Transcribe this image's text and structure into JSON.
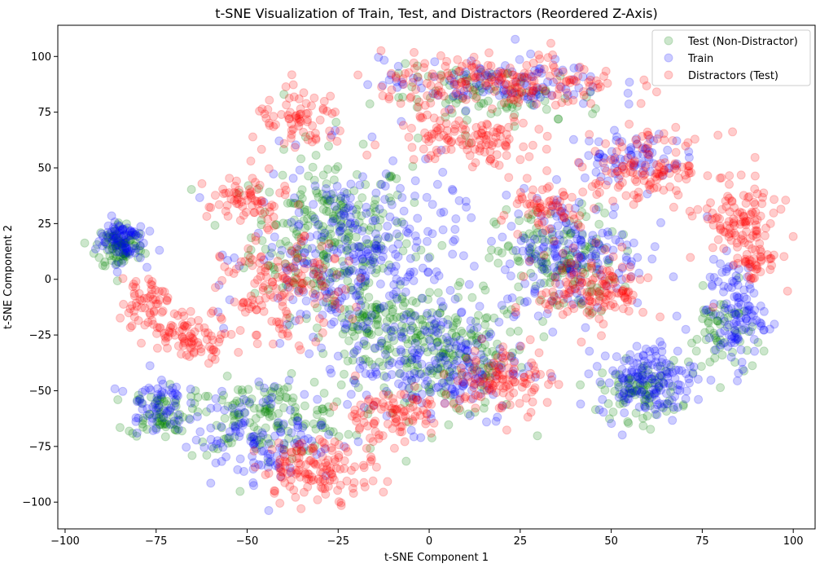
{
  "chart_data": {
    "type": "scatter",
    "title": "t-SNE Visualization of Train, Test, and Distractors (Reordered Z-Axis)",
    "xlabel": "t-SNE Component 1",
    "ylabel": "t-SNE Component 2",
    "xlim": [
      -102,
      106
    ],
    "ylim": [
      -112,
      114
    ],
    "xticks": [
      -100,
      -75,
      -50,
      -25,
      0,
      25,
      50,
      75,
      100
    ],
    "yticks": [
      -100,
      -75,
      -50,
      -25,
      0,
      25,
      50,
      75,
      100
    ],
    "grid": false,
    "legend_position": "top-right",
    "series": [
      {
        "name": "Test (Non-Distractor)",
        "color": "#008000",
        "alpha": 0.2,
        "clusters": [
          {
            "cx": -27,
            "cy": 20,
            "rx": 20,
            "ry": 32,
            "n": 260
          },
          {
            "cx": 5,
            "cy": -35,
            "rx": 20,
            "ry": 25,
            "n": 200
          },
          {
            "cx": -45,
            "cy": -62,
            "rx": 22,
            "ry": 15,
            "n": 150
          },
          {
            "cx": -85,
            "cy": 15,
            "rx": 6,
            "ry": 10,
            "n": 90
          },
          {
            "cx": -74,
            "cy": -60,
            "rx": 8,
            "ry": 10,
            "n": 60
          },
          {
            "cx": 35,
            "cy": 8,
            "rx": 15,
            "ry": 22,
            "n": 140
          },
          {
            "cx": 58,
            "cy": -50,
            "rx": 10,
            "ry": 12,
            "n": 90
          },
          {
            "cx": 18,
            "cy": 82,
            "rx": 28,
            "ry": 12,
            "n": 90
          },
          {
            "cx": -15,
            "cy": -20,
            "rx": 12,
            "ry": 14,
            "n": 100
          },
          {
            "cx": 80,
            "cy": -25,
            "rx": 8,
            "ry": 18,
            "n": 60
          }
        ]
      },
      {
        "name": "Train",
        "color": "#0000ff",
        "alpha": 0.2,
        "clusters": [
          {
            "cx": -20,
            "cy": 10,
            "rx": 26,
            "ry": 38,
            "n": 300
          },
          {
            "cx": 2,
            "cy": -38,
            "rx": 22,
            "ry": 25,
            "n": 200
          },
          {
            "cx": 40,
            "cy": 12,
            "rx": 18,
            "ry": 24,
            "n": 170
          },
          {
            "cx": 60,
            "cy": -45,
            "rx": 12,
            "ry": 15,
            "n": 150
          },
          {
            "cx": 84,
            "cy": -15,
            "rx": 7,
            "ry": 22,
            "n": 110
          },
          {
            "cx": -85,
            "cy": 18,
            "rx": 6,
            "ry": 9,
            "n": 80
          },
          {
            "cx": 18,
            "cy": 88,
            "rx": 28,
            "ry": 10,
            "n": 110
          },
          {
            "cx": -45,
            "cy": -70,
            "rx": 18,
            "ry": 20,
            "n": 120
          },
          {
            "cx": 55,
            "cy": 55,
            "rx": 14,
            "ry": 10,
            "n": 70
          },
          {
            "cx": -75,
            "cy": -55,
            "rx": 7,
            "ry": 12,
            "n": 60
          }
        ]
      },
      {
        "name": "Distractors (Test)",
        "color": "#ff0000",
        "alpha": 0.2,
        "clusters": [
          {
            "cx": 20,
            "cy": 88,
            "rx": 30,
            "ry": 12,
            "n": 200
          },
          {
            "cx": -35,
            "cy": 70,
            "rx": 12,
            "ry": 12,
            "n": 70
          },
          {
            "cx": 10,
            "cy": 62,
            "rx": 18,
            "ry": 10,
            "n": 110
          },
          {
            "cx": 60,
            "cy": 50,
            "rx": 18,
            "ry": 14,
            "n": 130
          },
          {
            "cx": 85,
            "cy": 25,
            "rx": 10,
            "ry": 14,
            "n": 100
          },
          {
            "cx": 90,
            "cy": 8,
            "rx": 6,
            "ry": 8,
            "n": 40
          },
          {
            "cx": 45,
            "cy": -5,
            "rx": 14,
            "ry": 15,
            "n": 140
          },
          {
            "cx": -50,
            "cy": 35,
            "rx": 10,
            "ry": 12,
            "n": 70
          },
          {
            "cx": -40,
            "cy": -5,
            "rx": 15,
            "ry": 20,
            "n": 150
          },
          {
            "cx": -65,
            "cy": -25,
            "rx": 10,
            "ry": 10,
            "n": 80
          },
          {
            "cx": -30,
            "cy": -85,
            "rx": 15,
            "ry": 12,
            "n": 140
          },
          {
            "cx": 20,
            "cy": -45,
            "rx": 12,
            "ry": 14,
            "n": 110
          },
          {
            "cx": -78,
            "cy": -10,
            "rx": 6,
            "ry": 12,
            "n": 60
          },
          {
            "cx": -10,
            "cy": -60,
            "rx": 15,
            "ry": 10,
            "n": 90
          },
          {
            "cx": 30,
            "cy": 30,
            "rx": 10,
            "ry": 10,
            "n": 60
          }
        ]
      }
    ]
  }
}
